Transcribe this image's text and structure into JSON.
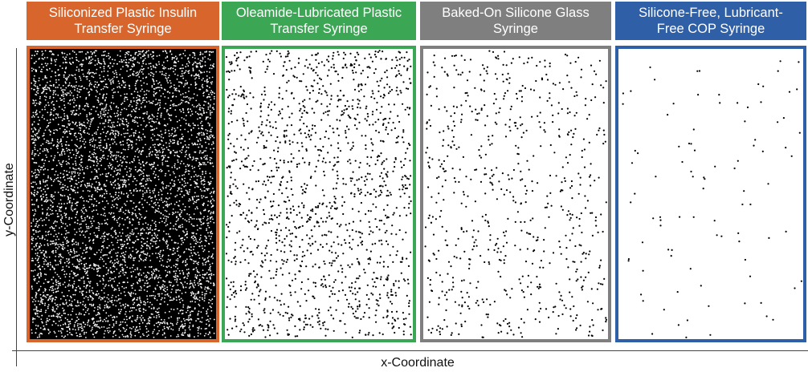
{
  "panels": [
    {
      "title": "Siliconized Plastic Insulin Transfer Syringe"
    },
    {
      "title": "Oleamide-Lubricated Plastic Transfer Syringe"
    },
    {
      "title": "Baked-On Silicone Glass Syringe"
    },
    {
      "title": "Silicone-Free, Lubricant-Free COP Syringe"
    }
  ],
  "axes": {
    "x_label": "x-Coordinate",
    "y_label": "y-Coordinate"
  }
}
